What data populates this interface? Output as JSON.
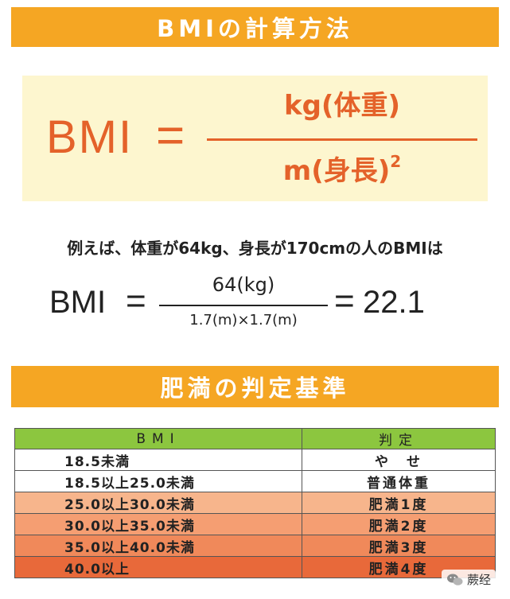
{
  "section1": {
    "title": "BMIの計算方法"
  },
  "formula": {
    "lhs": "BMI",
    "equals": "=",
    "numerator": "kg(体重)",
    "denominator": "m(身長)",
    "exponent": "2"
  },
  "example": {
    "sentence": "例えば、体重が64kg、身長が170cmの人のBMIは",
    "lhs": "BMI",
    "equals": "=",
    "numerator": "64(kg)",
    "denominator": "1.7(m)×1.7(m)",
    "equals2": "=",
    "result": "22.1"
  },
  "section2": {
    "title": "肥満の判定基準"
  },
  "table": {
    "headers": [
      "BMI",
      "判定"
    ],
    "rows": [
      [
        "18.5未満",
        "や　せ"
      ],
      [
        "18.5以上25.0未満",
        "普通体重"
      ],
      [
        "25.0以上30.0未満",
        "肥満1度"
      ],
      [
        "30.0以上35.0未満",
        "肥満2度"
      ],
      [
        "35.0以上40.0未満",
        "肥満3度"
      ],
      [
        "40.0以上",
        "肥満4度"
      ]
    ]
  },
  "watermark": {
    "text": "蕨经"
  },
  "colors": {
    "banner": "#f5a623",
    "formula_text": "#e4622a",
    "formula_bg": "#fdf6cf",
    "table_header": "#8cc63f"
  }
}
